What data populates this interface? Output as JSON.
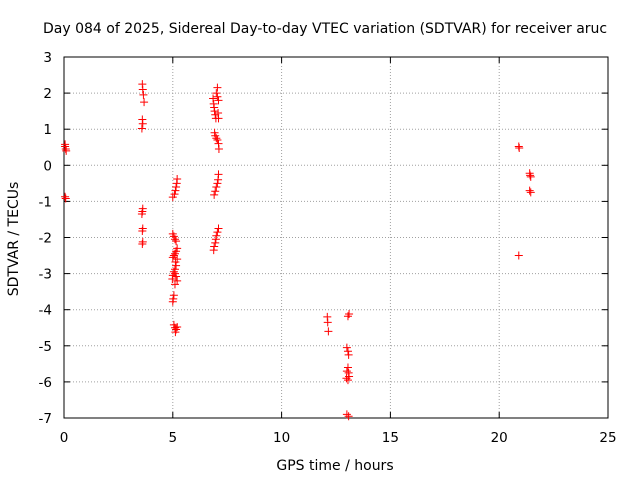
{
  "chart_data": {
    "type": "scatter",
    "title": "Day 084 of 2025, Sidereal Day-to-day VTEC variation (SDTVAR) for receiver aruc",
    "xlabel": "GPS time / hours",
    "ylabel": "SDTVAR / TECUs",
    "xlim": [
      0,
      25
    ],
    "ylim": [
      -7,
      3
    ],
    "xticks": [
      0,
      5,
      10,
      15,
      20,
      25
    ],
    "yticks": [
      -7,
      -6,
      -5,
      -4,
      -3,
      -2,
      -1,
      0,
      1,
      2,
      3
    ],
    "grid": true,
    "marker": "+",
    "series": [
      {
        "name": "SDTVAR",
        "color": "#ff0000",
        "points": [
          [
            0.05,
            0.58
          ],
          [
            0.05,
            0.52
          ],
          [
            0.08,
            0.45
          ],
          [
            0.1,
            0.4
          ],
          [
            0.05,
            -0.87
          ],
          [
            0.08,
            -0.92
          ],
          [
            3.6,
            2.25
          ],
          [
            3.62,
            2.1
          ],
          [
            3.65,
            1.95
          ],
          [
            3.68,
            1.75
          ],
          [
            3.6,
            1.27
          ],
          [
            3.62,
            1.15
          ],
          [
            3.58,
            1.02
          ],
          [
            3.62,
            -1.2
          ],
          [
            3.6,
            -1.28
          ],
          [
            3.58,
            -1.35
          ],
          [
            3.62,
            -1.75
          ],
          [
            3.6,
            -1.82
          ],
          [
            3.62,
            -2.12
          ],
          [
            3.6,
            -2.18
          ],
          [
            5.2,
            -0.38
          ],
          [
            5.18,
            -0.5
          ],
          [
            5.15,
            -0.6
          ],
          [
            5.12,
            -0.7
          ],
          [
            5.08,
            -0.8
          ],
          [
            5.0,
            -0.88
          ],
          [
            5.0,
            -1.9
          ],
          [
            5.05,
            -1.97
          ],
          [
            5.1,
            -2.05
          ],
          [
            5.15,
            -2.1
          ],
          [
            5.2,
            -2.3
          ],
          [
            5.15,
            -2.38
          ],
          [
            5.1,
            -2.45
          ],
          [
            5.05,
            -2.5
          ],
          [
            5.0,
            -2.55
          ],
          [
            5.2,
            -2.6
          ],
          [
            5.12,
            -2.68
          ],
          [
            5.15,
            -2.78
          ],
          [
            5.1,
            -2.88
          ],
          [
            5.05,
            -2.95
          ],
          [
            5.0,
            -3.05
          ],
          [
            4.98,
            -3.15
          ],
          [
            5.1,
            -3.0
          ],
          [
            5.15,
            -3.08
          ],
          [
            5.2,
            -3.2
          ],
          [
            5.1,
            -3.3
          ],
          [
            5.05,
            -3.6
          ],
          [
            5.02,
            -3.7
          ],
          [
            5.0,
            -3.78
          ],
          [
            5.05,
            -4.42
          ],
          [
            5.1,
            -4.5
          ],
          [
            5.15,
            -4.55
          ],
          [
            5.2,
            -4.48
          ],
          [
            5.12,
            -4.62
          ],
          [
            6.85,
            1.85
          ],
          [
            6.88,
            1.7
          ],
          [
            6.9,
            1.6
          ],
          [
            6.92,
            1.5
          ],
          [
            6.95,
            1.4
          ],
          [
            6.98,
            1.3
          ],
          [
            7.05,
            2.15
          ],
          [
            7.0,
            2.0
          ],
          [
            7.05,
            1.9
          ],
          [
            7.1,
            1.8
          ],
          [
            7.08,
            1.45
          ],
          [
            7.1,
            1.3
          ],
          [
            6.92,
            0.9
          ],
          [
            6.95,
            0.82
          ],
          [
            7.0,
            0.75
          ],
          [
            7.05,
            0.7
          ],
          [
            7.1,
            0.6
          ],
          [
            7.12,
            0.45
          ],
          [
            7.1,
            -0.25
          ],
          [
            7.08,
            -0.4
          ],
          [
            7.05,
            -0.5
          ],
          [
            7.0,
            -0.6
          ],
          [
            6.95,
            -0.72
          ],
          [
            6.9,
            -0.82
          ],
          [
            7.1,
            -1.75
          ],
          [
            7.05,
            -1.85
          ],
          [
            7.0,
            -1.95
          ],
          [
            6.98,
            -2.05
          ],
          [
            6.95,
            -2.15
          ],
          [
            6.9,
            -2.25
          ],
          [
            6.88,
            -2.35
          ],
          [
            12.1,
            -4.2
          ],
          [
            12.12,
            -4.35
          ],
          [
            12.15,
            -4.6
          ],
          [
            13.1,
            -4.12
          ],
          [
            13.05,
            -4.18
          ],
          [
            13.0,
            -5.05
          ],
          [
            13.05,
            -5.15
          ],
          [
            13.08,
            -5.25
          ],
          [
            13.05,
            -5.6
          ],
          [
            13.0,
            -5.7
          ],
          [
            13.08,
            -5.75
          ],
          [
            13.1,
            -5.85
          ],
          [
            12.98,
            -5.9
          ],
          [
            13.05,
            -5.95
          ],
          [
            13.0,
            -6.9
          ],
          [
            13.08,
            -6.95
          ],
          [
            20.9,
            0.52
          ],
          [
            20.92,
            0.48
          ],
          [
            20.9,
            -2.5
          ],
          [
            21.4,
            -0.22
          ],
          [
            21.42,
            -0.28
          ],
          [
            21.45,
            -0.32
          ],
          [
            21.4,
            -0.7
          ],
          [
            21.45,
            -0.75
          ]
        ]
      }
    ]
  }
}
